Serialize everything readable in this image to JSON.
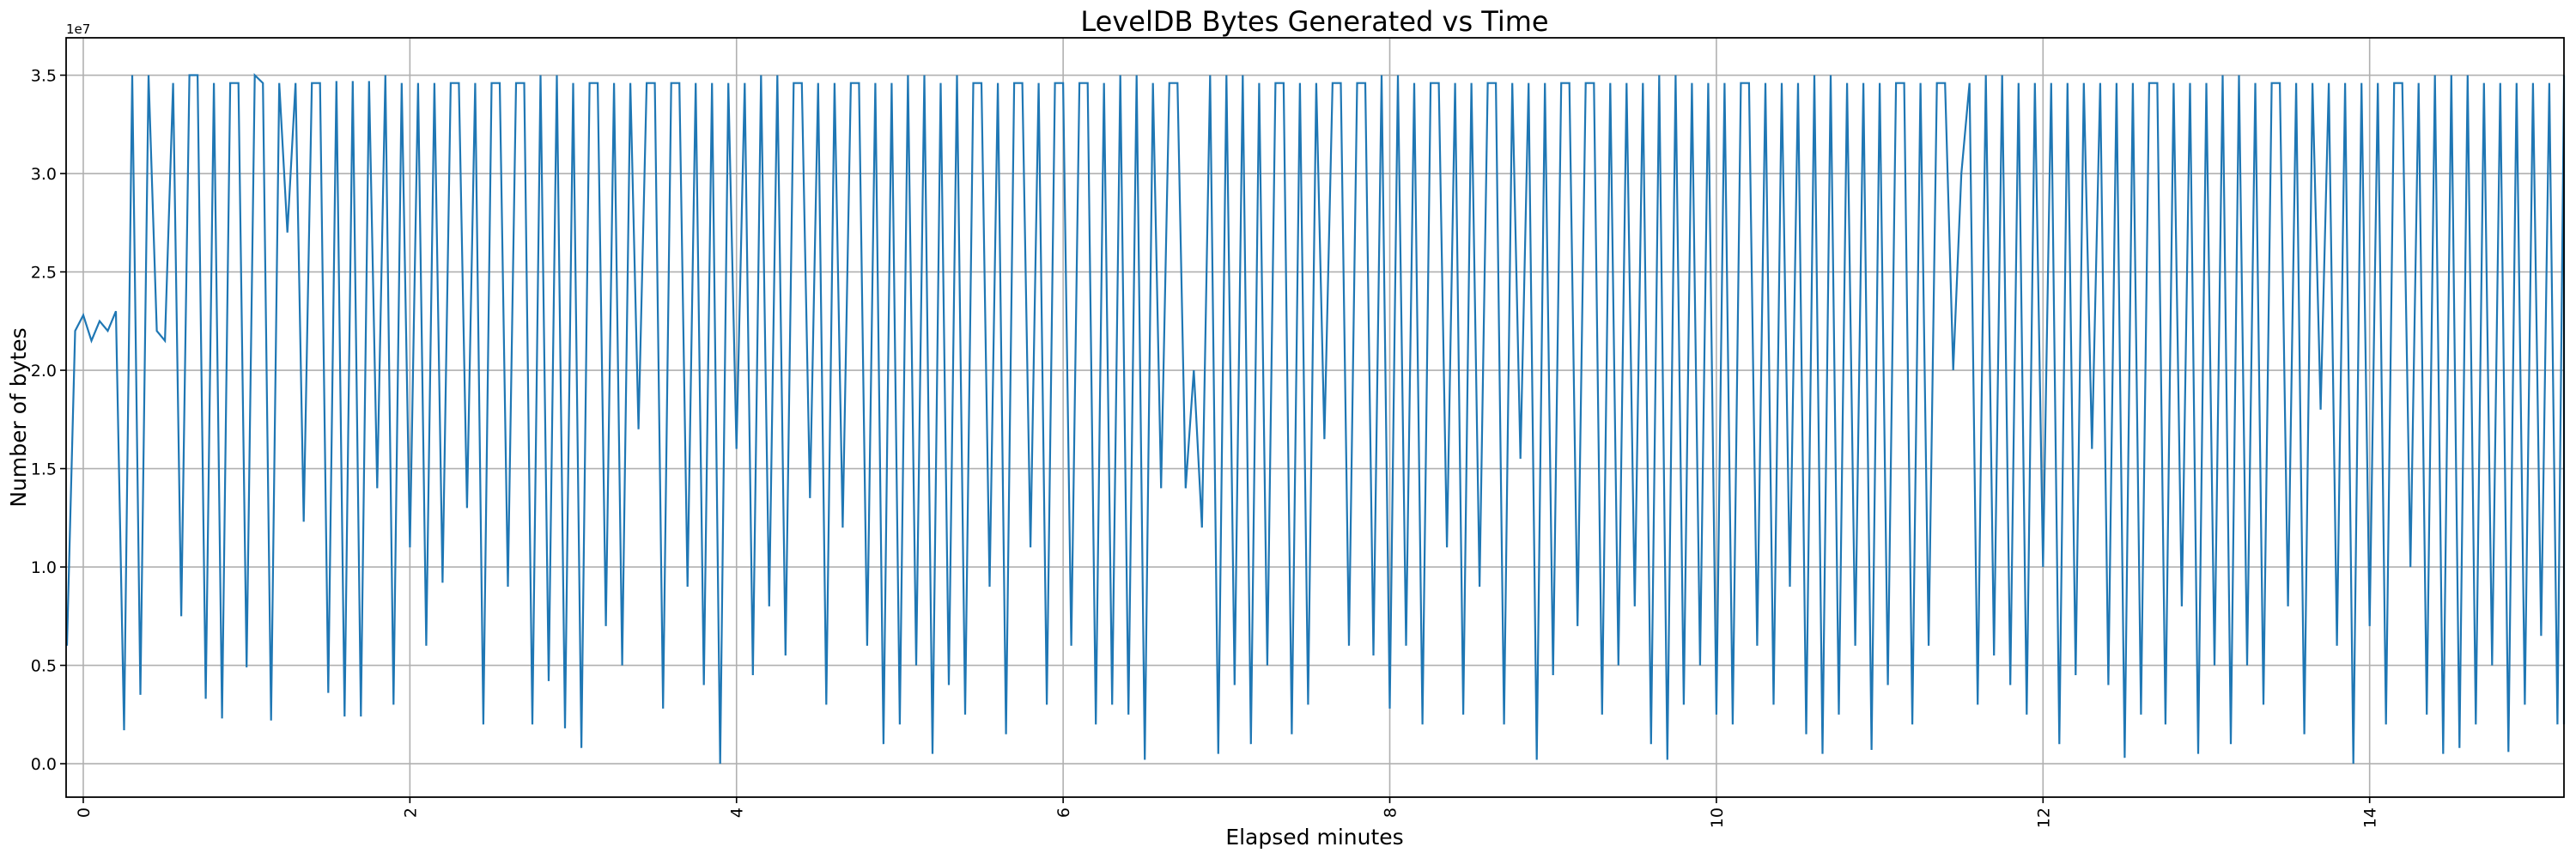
{
  "chart_data": {
    "type": "line",
    "title": "LevelDB Bytes Generated vs Time",
    "xlabel": "Elapsed minutes",
    "ylabel": "Number of bytes",
    "y_offset_text": "1e7",
    "y_scale": 10000000,
    "xlim": [
      -0.105,
      15.19
    ],
    "ylim": [
      -0.17,
      3.69
    ],
    "x_ticks": [
      0,
      2,
      4,
      6,
      8,
      10,
      12,
      14
    ],
    "x_tick_labels": [
      "0",
      "2",
      "4",
      "6",
      "8",
      "10",
      "12",
      "14"
    ],
    "y_ticks": [
      0,
      0.5,
      1,
      1.5,
      2,
      2.5,
      3,
      3.5
    ],
    "y_tick_labels": [
      "0.0",
      "0.5",
      "1.0",
      "1.5",
      "2.0",
      "2.5",
      "3.0",
      "3.5"
    ],
    "grid": true,
    "line_color": "#1f77b4",
    "series": [
      {
        "name": "bytes",
        "x_start": -0.1,
        "x_step": 0.05,
        "values": [
          0.6,
          2.2,
          2.28,
          2.15,
          2.25,
          2.2,
          2.3,
          0.17,
          3.5,
          0.35,
          3.5,
          2.2,
          2.15,
          3.46,
          0.75,
          3.5,
          3.5,
          0.33,
          3.46,
          0.23,
          3.46,
          3.46,
          0.49,
          3.5,
          3.46,
          0.22,
          3.46,
          2.7,
          3.46,
          1.23,
          3.46,
          3.46,
          0.36,
          3.47,
          0.24,
          3.47,
          0.24,
          3.47,
          1.4,
          3.5,
          0.3,
          3.46,
          1.1,
          3.46,
          0.6,
          3.46,
          0.92,
          3.46,
          3.46,
          1.3,
          3.46,
          0.2,
          3.46,
          3.46,
          0.9,
          3.46,
          3.46,
          0.2,
          3.5,
          0.42,
          3.5,
          0.18,
          3.46,
          0.08,
          3.46,
          3.46,
          0.7,
          3.46,
          0.5,
          3.46,
          1.7,
          3.46,
          3.46,
          0.28,
          3.46,
          3.46,
          0.9,
          3.46,
          0.4,
          3.46,
          0.0,
          3.46,
          1.6,
          3.46,
          0.45,
          3.5,
          0.8,
          3.5,
          0.55,
          3.46,
          3.46,
          1.35,
          3.46,
          0.3,
          3.46,
          1.2,
          3.46,
          3.46,
          0.6,
          3.46,
          0.1,
          3.46,
          0.2,
          3.5,
          0.5,
          3.5,
          0.05,
          3.46,
          0.4,
          3.5,
          0.25,
          3.46,
          3.46,
          0.9,
          3.46,
          0.15,
          3.46,
          3.46,
          1.1,
          3.46,
          0.3,
          3.46,
          3.46,
          0.6,
          3.46,
          3.46,
          0.2,
          3.46,
          0.3,
          3.5,
          0.25,
          3.5,
          0.02,
          3.46,
          1.4,
          3.46,
          3.46,
          1.4,
          2.0,
          1.2,
          3.5,
          0.05,
          3.5,
          0.4,
          3.5,
          0.1,
          3.46,
          0.5,
          3.46,
          3.46,
          0.15,
          3.46,
          0.3,
          3.46,
          1.65,
          3.46,
          3.46,
          0.6,
          3.46,
          3.46,
          0.55,
          3.5,
          0.28,
          3.5,
          0.6,
          3.46,
          0.2,
          3.46,
          3.46,
          1.1,
          3.46,
          0.25,
          3.46,
          0.9,
          3.46,
          3.46,
          0.2,
          3.46,
          1.55,
          3.46,
          0.02,
          3.46,
          0.45,
          3.46,
          3.46,
          0.7,
          3.46,
          3.46,
          0.25,
          3.46,
          0.5,
          3.46,
          0.8,
          3.46,
          0.1,
          3.5,
          0.02,
          3.5,
          0.3,
          3.46,
          0.5,
          3.46,
          0.25,
          3.46,
          0.2,
          3.46,
          3.46,
          0.6,
          3.46,
          0.3,
          3.46,
          0.9,
          3.46,
          0.15,
          3.5,
          0.05,
          3.5,
          0.25,
          3.46,
          0.6,
          3.46,
          0.07,
          3.46,
          0.4,
          3.46,
          3.46,
          0.2,
          3.46,
          0.6,
          3.46,
          3.46,
          2.0,
          3.0,
          3.46,
          0.3,
          3.5,
          0.55,
          3.5,
          0.4,
          3.46,
          0.25,
          3.46,
          1.0,
          3.46,
          0.1,
          3.46,
          0.45,
          3.46,
          1.6,
          3.46,
          0.4,
          3.46,
          0.03,
          3.46,
          0.25,
          3.46,
          3.46,
          0.2,
          3.46,
          0.8,
          3.46,
          0.05,
          3.46,
          0.5,
          3.5,
          0.1,
          3.5,
          0.5,
          3.46,
          0.3,
          3.46,
          3.46,
          0.8,
          3.46,
          0.15,
          3.46,
          1.8,
          3.46,
          0.6,
          3.46,
          0.0,
          3.46,
          0.7,
          3.46,
          0.2,
          3.46,
          3.46,
          1.0,
          3.46,
          0.25,
          3.5,
          0.05,
          3.5,
          0.08,
          3.5,
          0.2,
          3.46,
          0.5,
          3.46,
          0.06,
          3.46,
          0.3,
          3.46,
          0.65,
          3.46,
          0.2,
          3.46,
          1.1,
          3.46,
          3.5,
          0.2,
          3.5,
          0.6,
          3.46
        ]
      }
    ]
  }
}
